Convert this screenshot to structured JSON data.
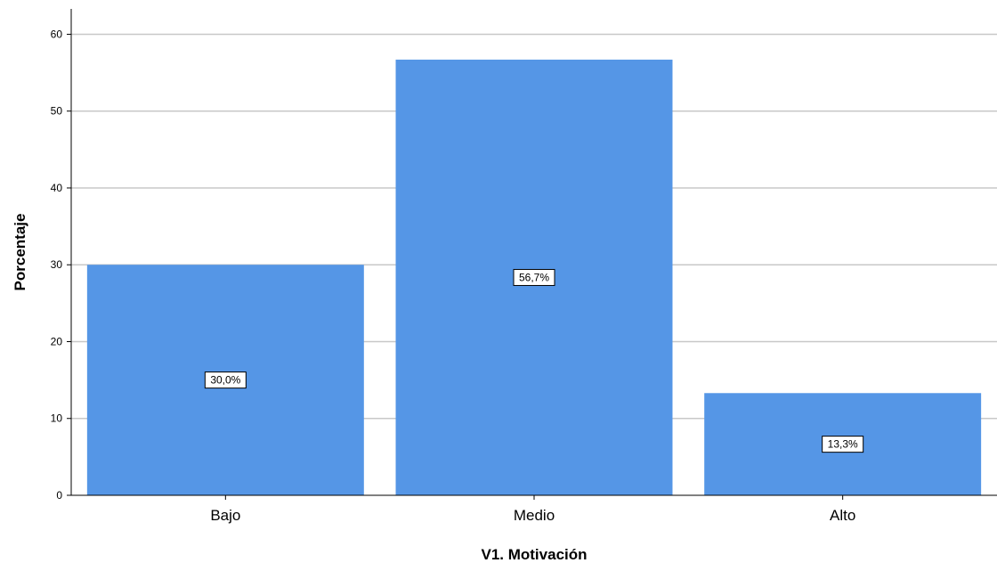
{
  "chart_data": {
    "type": "bar",
    "title": "",
    "xlabel": "V1. Motivación",
    "ylabel": "Porcentaje",
    "categories": [
      "Bajo",
      "Medio",
      "Alto"
    ],
    "values": [
      30.0,
      56.7,
      13.3
    ],
    "data_labels": [
      "30,0%",
      "56,7%",
      "13,3%"
    ],
    "y_ticks": [
      0,
      10,
      20,
      30,
      40,
      50,
      60
    ],
    "ylim": [
      0,
      63.3
    ],
    "grid": true,
    "legend": "none",
    "bar_color": "#5596e6",
    "grid_color": "#c8c8c8"
  }
}
